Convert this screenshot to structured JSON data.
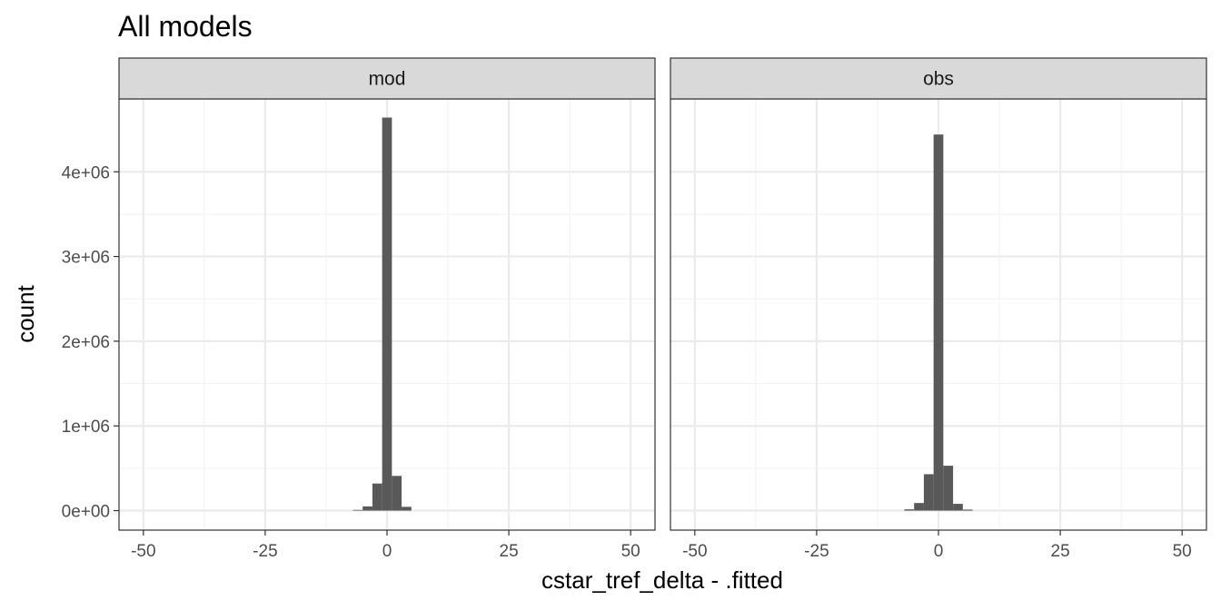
{
  "chart_data": {
    "type": "bar",
    "title": "All models",
    "xlabel": "cstar_tref_delta - .fitted",
    "ylabel": "count",
    "xlim": [
      -55,
      55
    ],
    "ylim": [
      -230000,
      4860000
    ],
    "x_ticks": [
      -50,
      -25,
      0,
      25,
      50
    ],
    "x_tick_labels": [
      "-50",
      "-25",
      "0",
      "25",
      "50"
    ],
    "y_ticks": [
      0,
      1000000,
      2000000,
      3000000,
      4000000
    ],
    "y_tick_labels": [
      "0e+00",
      "1e+06",
      "2e+06",
      "3e+06",
      "4e+06"
    ],
    "bin_width": 2,
    "grid": true,
    "panels": [
      {
        "name": "mod",
        "bins": [
          {
            "x": -6,
            "y": 8000
          },
          {
            "x": -4,
            "y": 50000
          },
          {
            "x": -2,
            "y": 320000
          },
          {
            "x": 0,
            "y": 4640000
          },
          {
            "x": 2,
            "y": 410000
          },
          {
            "x": 4,
            "y": 45000
          }
        ]
      },
      {
        "name": "obs",
        "bins": [
          {
            "x": -6,
            "y": 15000
          },
          {
            "x": -4,
            "y": 90000
          },
          {
            "x": -2,
            "y": 430000
          },
          {
            "x": 0,
            "y": 4440000
          },
          {
            "x": 2,
            "y": 530000
          },
          {
            "x": 4,
            "y": 80000
          },
          {
            "x": 6,
            "y": 12000
          }
        ]
      }
    ],
    "colors": {
      "bar": "#595959",
      "strip_fill": "#d9d9d9",
      "panel_border": "#333333",
      "grid_major": "#ebebeb",
      "grid_minor": "#f2f2f2"
    }
  }
}
